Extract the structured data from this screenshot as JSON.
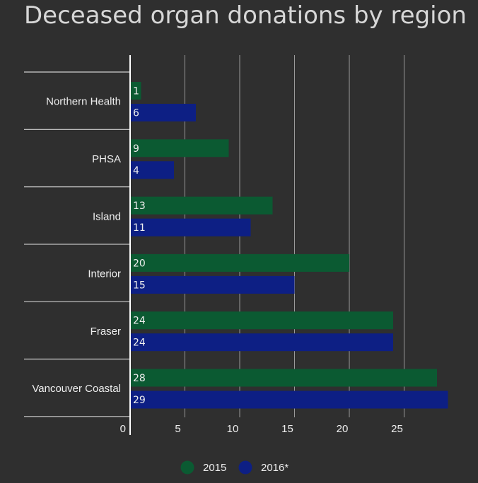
{
  "chart_data": {
    "type": "bar",
    "orientation": "horizontal",
    "title": "Deceased organ donations by region",
    "xlabel": "",
    "ylabel": "",
    "categories": [
      "Northern Health",
      "PHSA",
      "Island",
      "Interior",
      "Fraser",
      "Vancouver Coastal"
    ],
    "series": [
      {
        "name": "2015",
        "values": [
          1,
          9,
          13,
          20,
          24,
          28
        ],
        "color": "#0b5a32"
      },
      {
        "name": "2016*",
        "values": [
          6,
          4,
          11,
          15,
          24,
          29
        ],
        "color": "#0d1f84"
      }
    ],
    "xlim": [
      0,
      29
    ],
    "xticks": [
      0,
      5,
      10,
      15,
      20,
      25
    ],
    "grid": true,
    "legend": "bottom-center",
    "data_labels": true
  },
  "colors": {
    "background": "#2f2f2f",
    "text": "#eeeeee",
    "title": "#d7d7d7",
    "grid": "#9a9a9a",
    "axis": "#ffffff"
  }
}
